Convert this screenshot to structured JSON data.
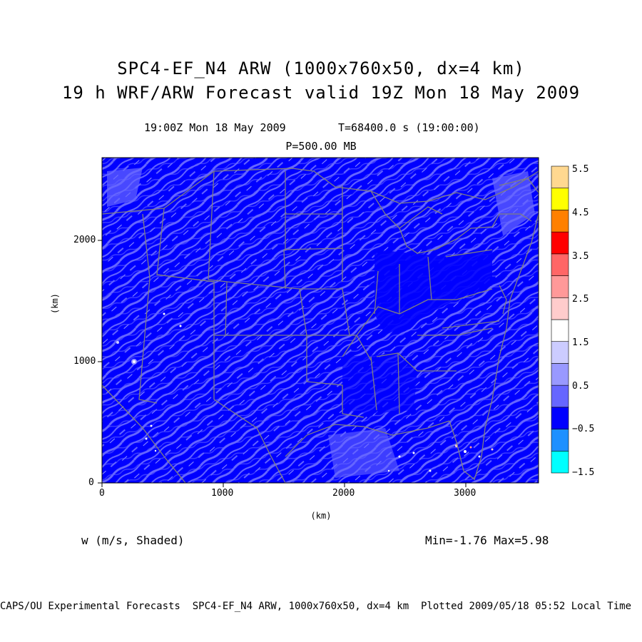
{
  "header": {
    "title_line1": "SPC4-EF_N4 ARW (1000x760x50, dx=4 km)",
    "title_line2": "19 h WRF/ARW Forecast valid 19Z Mon 18 May 2009",
    "time_label": "19:00Z Mon 18 May 2009",
    "time_seconds": "T=68400.0 s (19:00:00)",
    "level_label": "P=500.00 MB"
  },
  "axes": {
    "x_unit": "(km)",
    "y_unit": "(km)",
    "x_ticks": [
      "0",
      "1000",
      "2000",
      "3000"
    ],
    "y_ticks": [
      "0",
      "1000",
      "2000"
    ]
  },
  "field": {
    "variable_label": "w (m/s, Shaded)",
    "minmax_label": "Min=-1.76 Max=5.98"
  },
  "colorbar": {
    "labels": [
      "5.5",
      "4.5",
      "3.5",
      "2.5",
      "1.5",
      "0.5",
      "−0.5",
      "−1.5"
    ],
    "colors": [
      "#00ffff",
      "#1e90ff",
      "#0000ff",
      "#6666ff",
      "#9999ff",
      "#ccccff",
      "#ffffff",
      "#ffcccc",
      "#ff9999",
      "#ff6666",
      "#ff0000",
      "#ff8000",
      "#ffff00",
      "#ffd890"
    ]
  },
  "footer": {
    "text": "CAPS/OU Experimental Forecasts  SPC4-EF_N4 ARW, 1000x760x50, dx=4 km  Plotted 2009/05/18 05:52 Local Time"
  },
  "map": {
    "background_color": "#0000ff",
    "light_band_color": "#6666ff",
    "boundary_color": "#7f7f7f"
  }
}
